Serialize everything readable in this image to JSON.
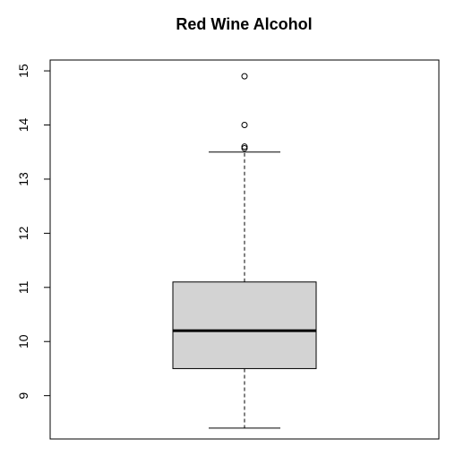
{
  "chart_data": {
    "type": "boxplot",
    "title": "Red Wine Alcohol",
    "xlabel": "",
    "ylabel": "",
    "ylim": [
      8.2,
      15.2
    ],
    "yticks": [
      9,
      10,
      11,
      12,
      13,
      14,
      15
    ],
    "grid": false,
    "box": {
      "whisker_low": 8.4,
      "q1": 9.5,
      "median": 10.2,
      "q3": 11.1,
      "whisker_high": 13.5,
      "outliers": [
        13.57,
        13.6,
        14.0,
        14.9
      ]
    },
    "colors": {
      "box_fill": "#d3d3d3",
      "stroke": "#000000"
    }
  }
}
